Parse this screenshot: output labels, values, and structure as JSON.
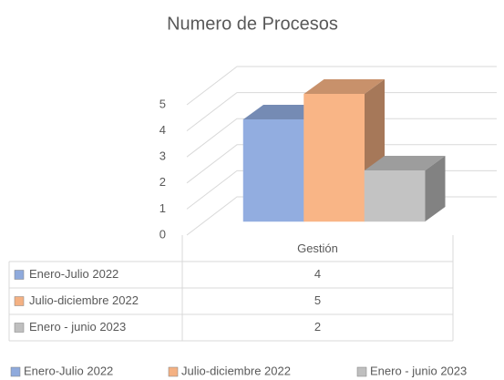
{
  "chart_data": {
    "type": "bar",
    "title": "Numero de Procesos",
    "categories": [
      "Gestión"
    ],
    "series": [
      {
        "name": "Enero-Julio 2022",
        "color": "#8faadc",
        "values": [
          4
        ]
      },
      {
        "name": "Julio-diciembre 2022",
        "color": "#f4b183",
        "values": [
          5
        ]
      },
      {
        "name": "Enero - junio 2023",
        "color": "#bfbfbf",
        "values": [
          2
        ]
      }
    ],
    "ylim": [
      0,
      5
    ],
    "yticks": [
      0,
      1,
      2,
      3,
      4,
      5
    ],
    "grid": true,
    "legend": "bottom",
    "data_table": true
  }
}
